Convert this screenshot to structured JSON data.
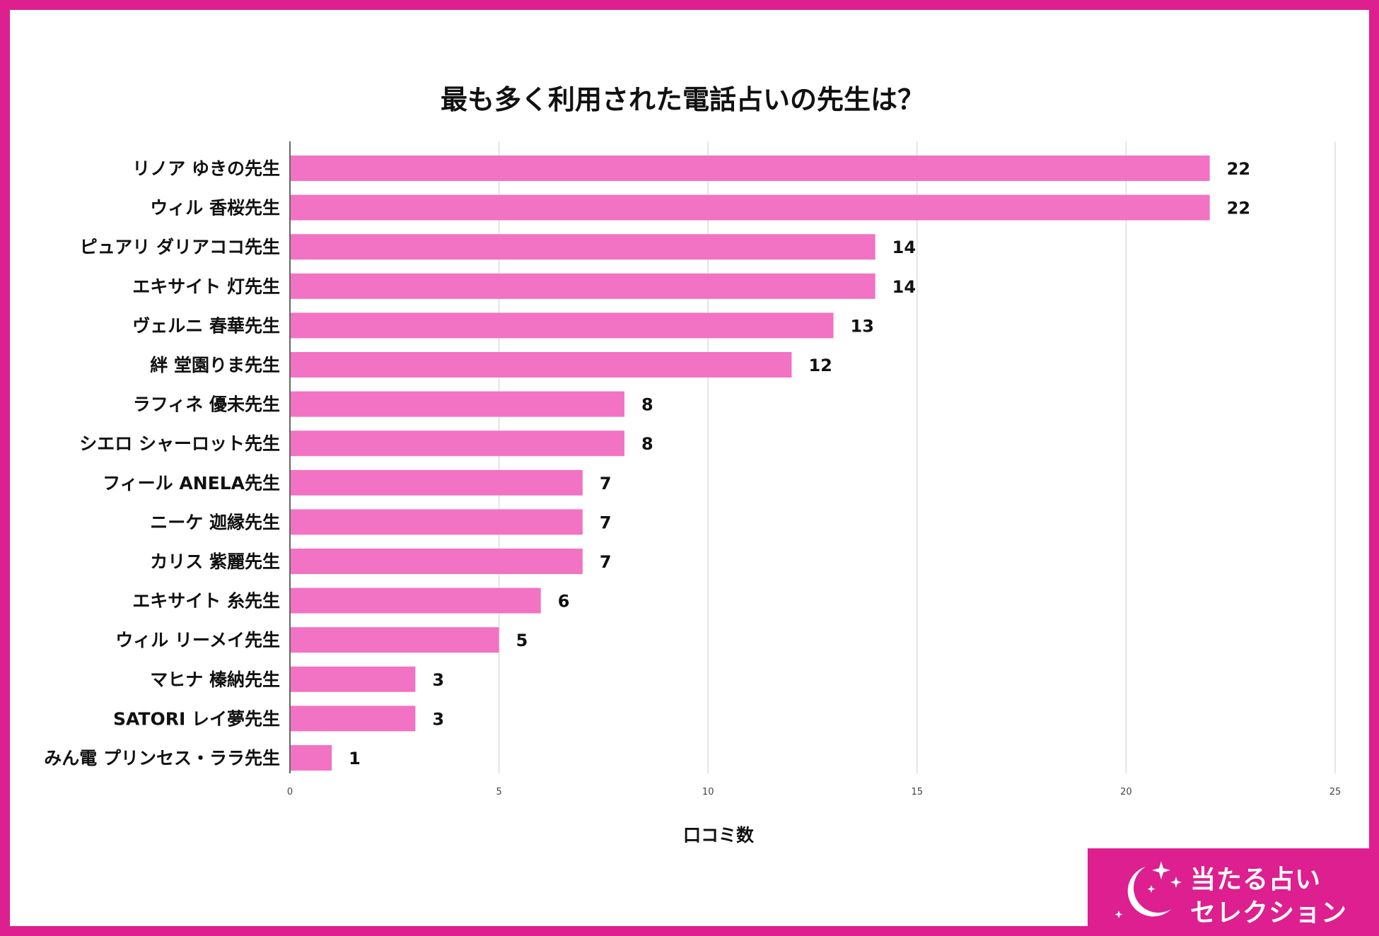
{
  "chart_data": {
    "type": "bar",
    "orientation": "horizontal",
    "title": "最も多く利用された電話占いの先生は？",
    "xlabel": "口コミ数",
    "ylabel": "",
    "xlim": [
      0,
      25
    ],
    "xticks": [
      0,
      5,
      10,
      15,
      20,
      25
    ],
    "grid": true,
    "bar_color": "#f272c4",
    "categories": [
      "リノア ゆきの先生",
      "ウィル 香桜先生",
      "ピュアリ ダリアココ先生",
      "エキサイト 灯先生",
      "ヴェルニ 春華先生",
      "絆 堂園りま先生",
      "ラフィネ 優未先生",
      "シエロ シャーロット先生",
      "フィール ANELA先生",
      "ニーケ 迦縁先生",
      "カリス 紫麗先生",
      "エキサイト 糸先生",
      "ウィル リーメイ先生",
      "マヒナ 榛納先生",
      "SATORI レイ夢先生",
      "みん電 プリンセス・ララ先生"
    ],
    "values": [
      22,
      22,
      14,
      14,
      13,
      12,
      8,
      8,
      7,
      7,
      7,
      6,
      5,
      3,
      3,
      1
    ]
  },
  "brand": {
    "line1": "当たる占い",
    "line2": "セレクション",
    "color": "#dd1f8f"
  }
}
